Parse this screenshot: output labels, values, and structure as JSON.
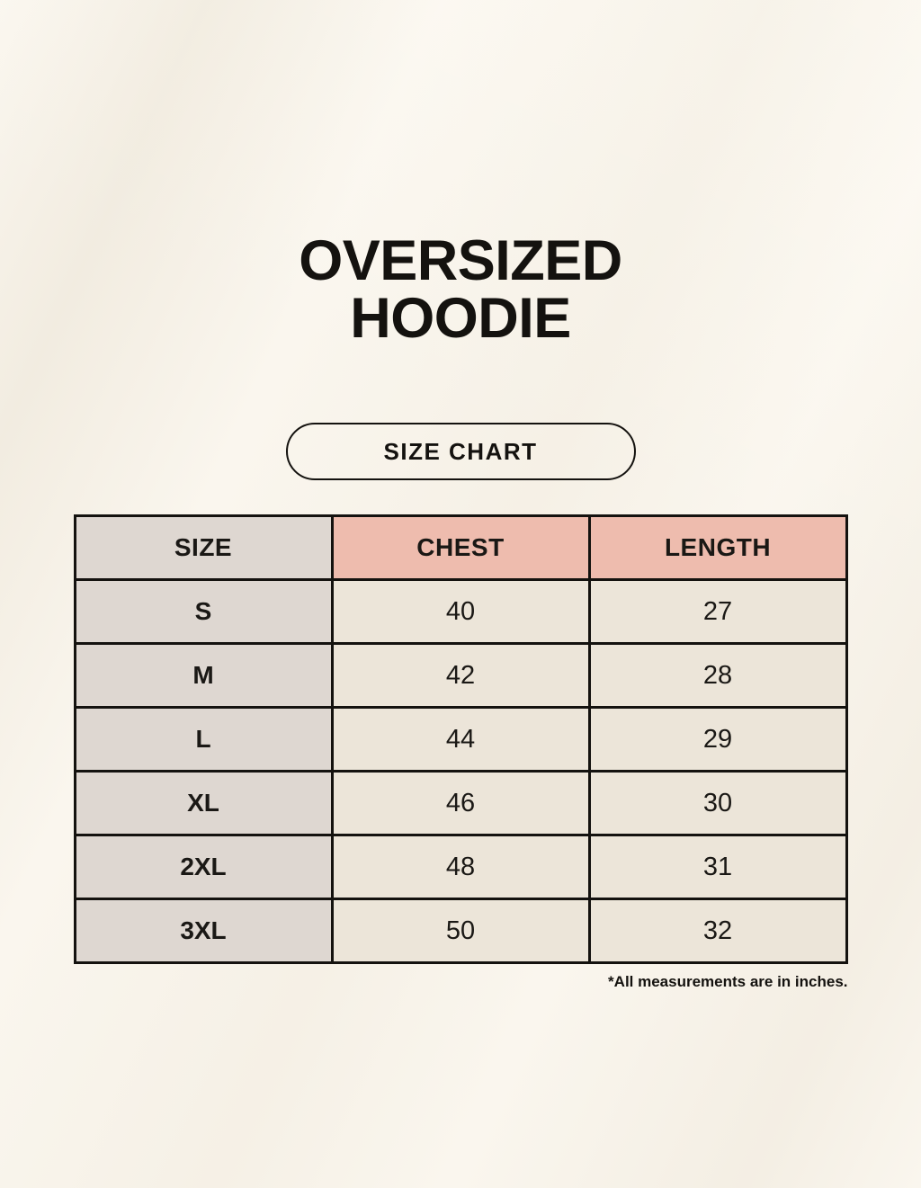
{
  "page": {
    "title_line1": "OVERSIZED",
    "title_line2": "HOODIE",
    "badge_label": "SIZE CHART",
    "footnote": "*All measurements are in inches."
  },
  "colors": {
    "background": "#faf6ee",
    "size_column_bg": "#ded7d1",
    "measure_header_bg": "#eebcae",
    "value_cell_bg": "#ece5d9",
    "border": "#14120f",
    "text": "#14120f"
  },
  "chart_data": {
    "type": "table",
    "title": "OVERSIZED HOODIE — SIZE CHART",
    "units": "inches",
    "columns": [
      "SIZE",
      "CHEST",
      "LENGTH"
    ],
    "rows": [
      {
        "size": "S",
        "chest": 40,
        "length": 27
      },
      {
        "size": "M",
        "chest": 42,
        "length": 28
      },
      {
        "size": "L",
        "chest": 44,
        "length": 29
      },
      {
        "size": "XL",
        "chest": 46,
        "length": 30
      },
      {
        "size": "2XL",
        "chest": 48,
        "length": 31
      },
      {
        "size": "3XL",
        "chest": 50,
        "length": 32
      }
    ]
  }
}
